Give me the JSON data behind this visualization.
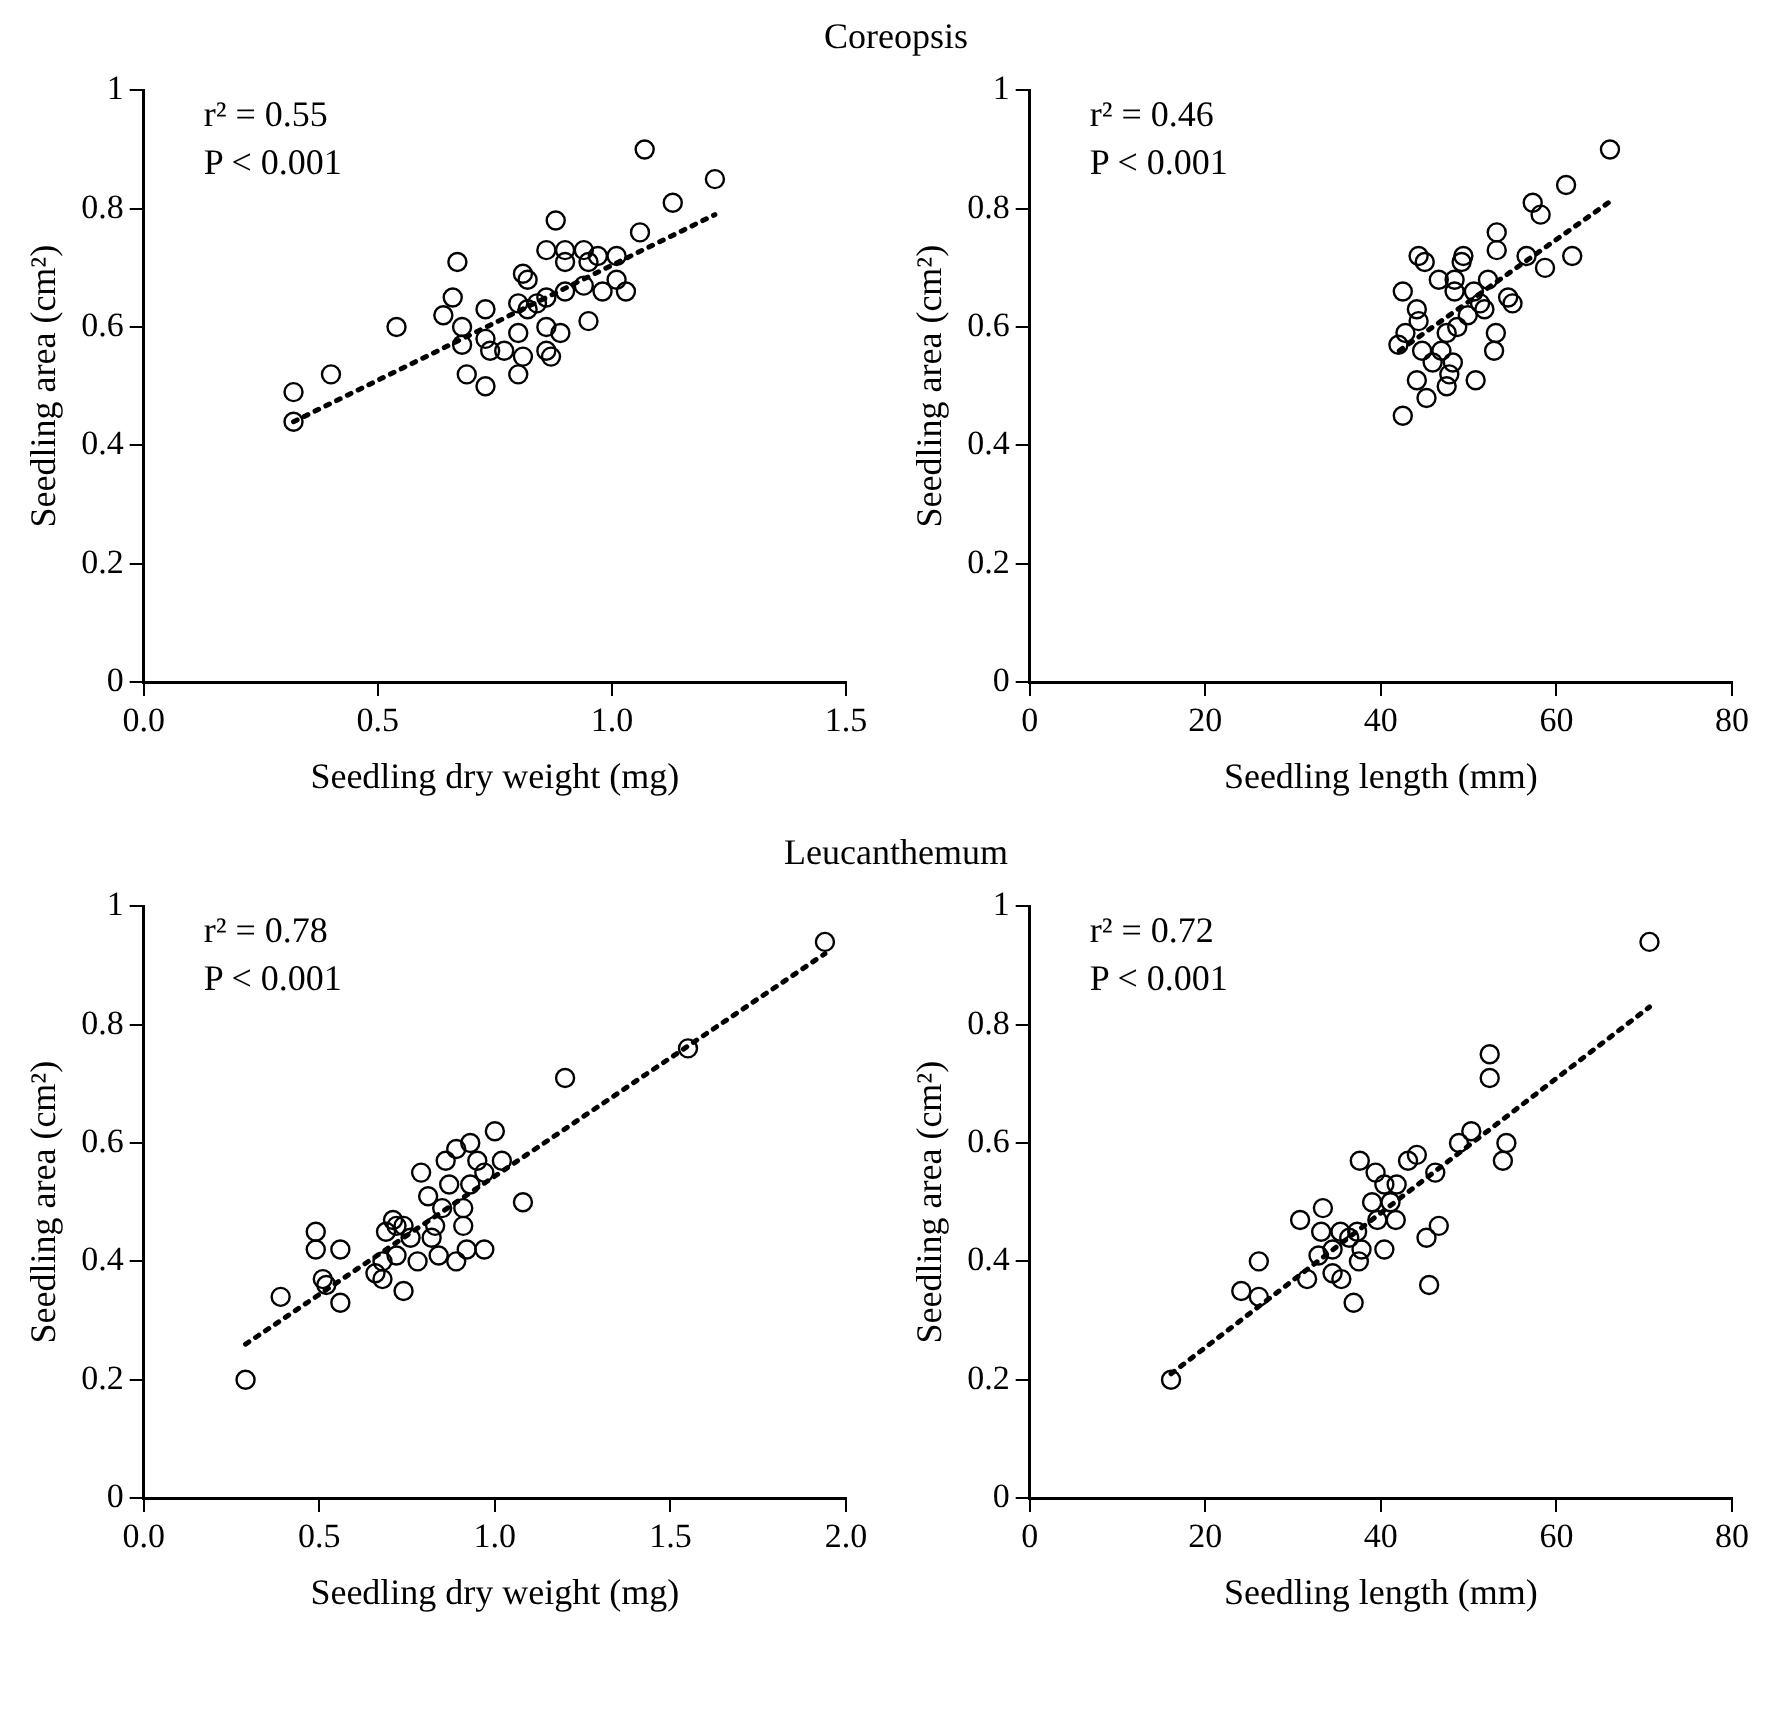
{
  "chart_data": [
    {
      "type": "scatter",
      "title": "Coreopsis",
      "xlabel": "Seedling dry weight (mg)",
      "ylabel": "Seedling area (cm²)",
      "annotations": [
        "r² = 0.55",
        "P < 0.001"
      ],
      "xlim": [
        0,
        1.5
      ],
      "xticks": [
        {
          "value": 0,
          "label": "0.0"
        },
        {
          "value": 0.5,
          "label": "0.5"
        },
        {
          "value": 1,
          "label": "1.0"
        },
        {
          "value": 1.5,
          "label": "1.5"
        }
      ],
      "ylim": [
        0,
        1
      ],
      "yticks": [
        0,
        0.2,
        0.4,
        0.6,
        0.8,
        1
      ],
      "grid": false,
      "legend": false,
      "series": [
        {
          "type": "scatter",
          "marker": "circle",
          "color": "#000000",
          "x": [
            0.32,
            0.32,
            0.4,
            0.54,
            0.67,
            0.66,
            0.64,
            0.68,
            0.68,
            0.69,
            0.73,
            0.73,
            0.73,
            0.74,
            0.77,
            0.8,
            0.8,
            0.81,
            0.81,
            0.82,
            0.8,
            0.82,
            0.84,
            0.86,
            0.86,
            0.86,
            0.87,
            0.89,
            0.88,
            0.86,
            0.9,
            0.9,
            0.9,
            0.94,
            0.95,
            0.97,
            0.94,
            0.95,
            0.98,
            1.01,
            1.01,
            1.03,
            1.06,
            1.07,
            1.13,
            1.22
          ],
          "values": [
            0.49,
            0.44,
            0.52,
            0.6,
            0.71,
            0.65,
            0.62,
            0.6,
            0.57,
            0.52,
            0.5,
            0.63,
            0.58,
            0.56,
            0.56,
            0.59,
            0.52,
            0.55,
            0.69,
            0.68,
            0.64,
            0.63,
            0.64,
            0.65,
            0.6,
            0.56,
            0.55,
            0.59,
            0.78,
            0.73,
            0.73,
            0.71,
            0.66,
            0.73,
            0.71,
            0.72,
            0.67,
            0.61,
            0.66,
            0.72,
            0.68,
            0.66,
            0.76,
            0.9,
            0.81,
            0.85
          ]
        },
        {
          "type": "line",
          "marker": "none",
          "line_style": "dotted",
          "color": "#000000",
          "x": [
            0.32,
            1.22
          ],
          "values": [
            0.44,
            0.79
          ]
        }
      ]
    },
    {
      "type": "scatter",
      "xlabel": "Seedling length (mm)",
      "ylabel": "Seedling area (cm²)",
      "annotations": [
        "r² = 0.46",
        "P < 0.001"
      ],
      "xlim": [
        0,
        80
      ],
      "xticks": [
        0,
        20,
        40,
        60,
        80
      ],
      "ylim": [
        0,
        1
      ],
      "yticks": [
        0,
        0.2,
        0.4,
        0.6,
        0.8,
        1
      ],
      "grid": false,
      "legend": false,
      "series": [
        {
          "type": "scatter",
          "marker": "circle",
          "color": "#000000",
          "x": [
            42.5,
            42.5,
            42,
            42.8,
            44.3,
            45,
            44.1,
            44.3,
            44.7,
            45.2,
            44.1,
            45.9,
            46.9,
            47.5,
            47.8,
            48.2,
            47.5,
            48.7,
            46.6,
            48.4,
            48.4,
            49.4,
            49.2,
            49.9,
            50.6,
            51.3,
            51.8,
            52.2,
            50.8,
            53.1,
            52.9,
            53.2,
            53.2,
            54.5,
            55,
            56.6,
            57.3,
            58.2,
            58.7,
            61.1,
            61.8,
            66.1
          ],
          "values": [
            0.45,
            0.66,
            0.57,
            0.59,
            0.72,
            0.71,
            0.63,
            0.61,
            0.56,
            0.48,
            0.51,
            0.54,
            0.56,
            0.5,
            0.52,
            0.54,
            0.59,
            0.6,
            0.68,
            0.68,
            0.66,
            0.72,
            0.71,
            0.62,
            0.66,
            0.64,
            0.63,
            0.68,
            0.51,
            0.59,
            0.56,
            0.76,
            0.73,
            0.65,
            0.64,
            0.72,
            0.81,
            0.79,
            0.7,
            0.84,
            0.72,
            0.9
          ]
        },
        {
          "type": "line",
          "marker": "none",
          "line_style": "dotted",
          "color": "#000000",
          "x": [
            42.1,
            65.9
          ],
          "values": [
            0.56,
            0.81
          ]
        }
      ]
    },
    {
      "type": "scatter",
      "title": "Leucanthemum",
      "xlabel": "Seedling dry weight (mg)",
      "ylabel": "Seedling area (cm²)",
      "annotations": [
        "r² = 0.78",
        "P < 0.001"
      ],
      "xlim": [
        0,
        2
      ],
      "xticks": [
        {
          "value": 0,
          "label": "0.0"
        },
        {
          "value": 0.5,
          "label": "0.5"
        },
        {
          "value": 1,
          "label": "1.0"
        },
        {
          "value": 1.5,
          "label": "1.5"
        },
        {
          "value": 2,
          "label": "2.0"
        }
      ],
      "ylim": [
        0,
        1
      ],
      "yticks": [
        0,
        0.2,
        0.4,
        0.6,
        0.8,
        1
      ],
      "grid": false,
      "legend": false,
      "series": [
        {
          "type": "scatter",
          "marker": "circle",
          "color": "#000000",
          "x": [
            0.29,
            0.39,
            0.49,
            0.49,
            0.51,
            0.52,
            0.56,
            0.56,
            0.66,
            0.68,
            0.68,
            0.69,
            0.71,
            0.72,
            0.74,
            0.74,
            0.72,
            0.76,
            0.78,
            0.79,
            0.81,
            0.82,
            0.83,
            0.84,
            0.85,
            0.86,
            0.87,
            0.89,
            0.89,
            0.91,
            0.91,
            0.92,
            0.93,
            0.95,
            0.93,
            0.97,
            0.97,
            1,
            1.02,
            1.08,
            1.2,
            1.55,
            1.94
          ],
          "values": [
            0.2,
            0.34,
            0.45,
            0.42,
            0.37,
            0.36,
            0.42,
            0.33,
            0.38,
            0.4,
            0.37,
            0.45,
            0.47,
            0.46,
            0.46,
            0.35,
            0.41,
            0.44,
            0.4,
            0.55,
            0.51,
            0.44,
            0.46,
            0.41,
            0.49,
            0.57,
            0.53,
            0.59,
            0.4,
            0.49,
            0.46,
            0.42,
            0.6,
            0.57,
            0.53,
            0.55,
            0.42,
            0.62,
            0.57,
            0.5,
            0.71,
            0.76,
            0.94
          ]
        },
        {
          "type": "line",
          "marker": "none",
          "line_style": "dotted",
          "color": "#000000",
          "x": [
            0.29,
            1.94
          ],
          "values": [
            0.26,
            0.92
          ]
        }
      ]
    },
    {
      "type": "scatter",
      "xlabel": "Seedling length (mm)",
      "ylabel": "Seedling area (cm²)",
      "annotations": [
        "r² = 0.72",
        "P < 0.001"
      ],
      "xlim": [
        0,
        80
      ],
      "xticks": [
        0,
        20,
        40,
        60,
        80
      ],
      "ylim": [
        0,
        1
      ],
      "yticks": [
        0,
        0.2,
        0.4,
        0.6,
        0.8,
        1
      ],
      "grid": false,
      "legend": false,
      "series": [
        {
          "type": "scatter",
          "marker": "circle",
          "color": "#000000",
          "x": [
            16.1,
            24.1,
            26.1,
            26.1,
            31.6,
            30.8,
            32.9,
            33.4,
            33.2,
            34.5,
            34.5,
            35.4,
            35.5,
            36.4,
            36.9,
            37.3,
            37.5,
            37.6,
            37.8,
            39,
            39.4,
            39.6,
            40.4,
            40.4,
            41.1,
            41.7,
            41.8,
            43.1,
            44.1,
            45.2,
            45.5,
            46.2,
            46.6,
            48.9,
            50.3,
            52.4,
            52.4,
            53.9,
            54.3,
            70.6
          ],
          "values": [
            0.2,
            0.35,
            0.4,
            0.34,
            0.37,
            0.47,
            0.41,
            0.49,
            0.45,
            0.42,
            0.38,
            0.45,
            0.37,
            0.44,
            0.33,
            0.45,
            0.4,
            0.57,
            0.42,
            0.5,
            0.55,
            0.47,
            0.42,
            0.53,
            0.5,
            0.47,
            0.53,
            0.57,
            0.58,
            0.44,
            0.36,
            0.55,
            0.46,
            0.6,
            0.62,
            0.75,
            0.71,
            0.57,
            0.6,
            0.94
          ]
        },
        {
          "type": "line",
          "marker": "none",
          "line_style": "dotted",
          "color": "#000000",
          "x": [
            16.1,
            70.6
          ],
          "values": [
            0.21,
            0.83
          ]
        }
      ]
    }
  ]
}
